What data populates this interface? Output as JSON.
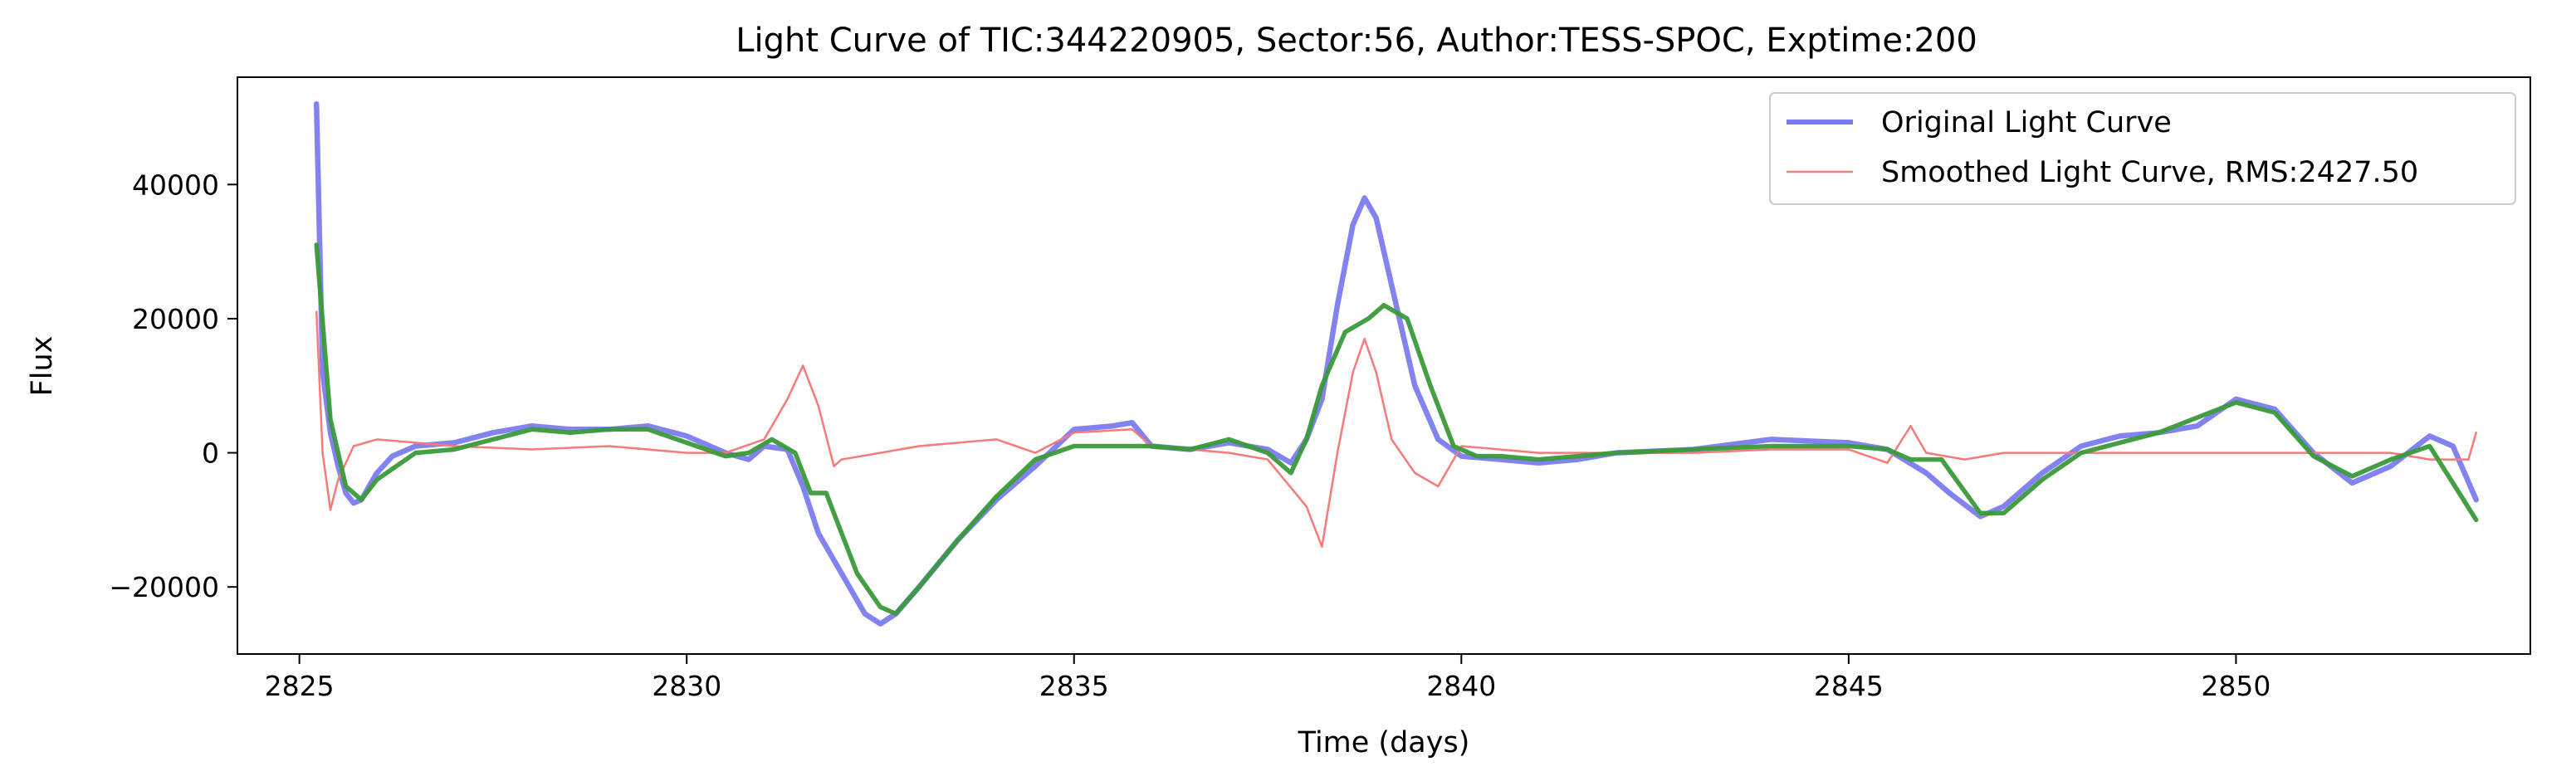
{
  "chart_data": {
    "type": "line",
    "title": "Light Curve of TIC:344220905, Sector:56, Author:TESS-SPOC, Exptime:200",
    "xlabel": "Time (days)",
    "ylabel": "Flux",
    "xlim": [
      2824.2,
      2853.8
    ],
    "ylim": [
      -30000,
      56000
    ],
    "xticks": [
      2825,
      2830,
      2835,
      2840,
      2845,
      2850
    ],
    "yticks": [
      -20000,
      0,
      20000,
      40000
    ],
    "xtick_labels": [
      "2825",
      "2830",
      "2835",
      "2840",
      "2845",
      "2850"
    ],
    "ytick_labels": [
      "−20000",
      "0",
      "20000",
      "40000"
    ],
    "grid": false,
    "legend_position": "top-right",
    "colors": {
      "original": "#7b7bf0",
      "smoothed": "#f87a7a",
      "trend": "#3a9a3a"
    },
    "legend": [
      {
        "label": "Original Light Curve",
        "color": "#7b7bf0"
      },
      {
        "label": "Smoothed Light Curve, RMS:2427.50",
        "color": "#f87a7a"
      }
    ],
    "series": [
      {
        "name": "Original Light Curve",
        "x": [
          2825.22,
          2825.3,
          2825.4,
          2825.5,
          2825.6,
          2825.7,
          2825.8,
          2825.9,
          2826.0,
          2826.2,
          2826.5,
          2827.0,
          2827.5,
          2828.0,
          2828.5,
          2829.0,
          2829.5,
          2830.0,
          2830.5,
          2830.8,
          2831.0,
          2831.3,
          2831.5,
          2831.7,
          2831.9,
          2832.1,
          2832.3,
          2832.5,
          2832.7,
          2833.0,
          2833.5,
          2834.0,
          2834.5,
          2835.0,
          2835.5,
          2835.75,
          2836.0,
          2836.5,
          2837.0,
          2837.5,
          2837.8,
          2838.0,
          2838.2,
          2838.4,
          2838.6,
          2838.75,
          2838.9,
          2839.1,
          2839.4,
          2839.7,
          2840.0,
          2840.5,
          2841.0,
          2841.5,
          2842.0,
          2843.0,
          2844.0,
          2845.0,
          2845.5,
          2846.0,
          2846.3,
          2846.7,
          2847.0,
          2847.5,
          2848.0,
          2848.5,
          2849.0,
          2849.5,
          2850.0,
          2850.5,
          2851.0,
          2851.5,
          2852.0,
          2852.5,
          2852.8,
          2853.1
        ],
        "y": [
          52000,
          12000,
          3000,
          -2000,
          -6000,
          -7500,
          -7000,
          -5000,
          -3000,
          -500,
          1000,
          1500,
          3000,
          4000,
          3500,
          3500,
          4000,
          2500,
          0,
          -1000,
          1000,
          500,
          -5000,
          -12000,
          -16000,
          -20000,
          -24000,
          -25500,
          -24000,
          -20000,
          -13000,
          -7000,
          -2000,
          3500,
          4000,
          4500,
          1000,
          500,
          1500,
          500,
          -1500,
          2000,
          8000,
          22000,
          34000,
          38000,
          35000,
          25000,
          10000,
          2000,
          -500,
          -1000,
          -1500,
          -1000,
          0,
          500,
          2000,
          1500,
          500,
          -3000,
          -6000,
          -9500,
          -8000,
          -3000,
          1000,
          2500,
          3000,
          4000,
          8000,
          6500,
          0,
          -4500,
          -2000,
          2500,
          1000,
          -7000
        ]
      },
      {
        "name": "Smoothed Light Curve, RMS:2427.50",
        "x": [
          2825.22,
          2825.3,
          2825.4,
          2825.5,
          2825.7,
          2826.0,
          2826.5,
          2827.0,
          2828.0,
          2829.0,
          2830.0,
          2830.5,
          2831.0,
          2831.3,
          2831.5,
          2831.7,
          2831.9,
          2832.0,
          2832.5,
          2833.0,
          2834.0,
          2834.5,
          2835.0,
          2835.75,
          2836.0,
          2837.0,
          2837.5,
          2838.0,
          2838.2,
          2838.4,
          2838.6,
          2838.75,
          2838.9,
          2839.1,
          2839.4,
          2839.7,
          2840.0,
          2841.0,
          2842.0,
          2843.0,
          2844.0,
          2845.0,
          2845.5,
          2845.8,
          2846.0,
          2846.5,
          2847.0,
          2848.0,
          2849.0,
          2850.0,
          2851.0,
          2852.0,
          2852.5,
          2853.0,
          2853.1
        ],
        "y": [
          21000,
          0,
          -8500,
          -4000,
          1000,
          2000,
          1500,
          1000,
          500,
          1000,
          0,
          0,
          2000,
          8000,
          13000,
          7000,
          -2000,
          -1000,
          0,
          1000,
          2000,
          0,
          3000,
          3500,
          1000,
          0,
          -1000,
          -8000,
          -14000,
          0,
          12000,
          17000,
          12000,
          2000,
          -3000,
          -5000,
          1000,
          0,
          0,
          0,
          500,
          500,
          -1500,
          4000,
          0,
          -1000,
          0,
          0,
          0,
          0,
          0,
          0,
          -1000,
          -1000,
          3000
        ]
      },
      {
        "name": "",
        "x": [
          2825.22,
          2825.4,
          2825.6,
          2825.8,
          2826.0,
          2826.5,
          2827.0,
          2827.5,
          2828.0,
          2828.5,
          2829.0,
          2829.5,
          2830.0,
          2830.5,
          2830.8,
          2831.1,
          2831.4,
          2831.6,
          2831.8,
          2832.0,
          2832.2,
          2832.5,
          2832.7,
          2833.0,
          2833.5,
          2834.0,
          2834.5,
          2835.0,
          2835.5,
          2836.0,
          2836.5,
          2837.0,
          2837.5,
          2837.8,
          2838.0,
          2838.2,
          2838.5,
          2838.8,
          2839.0,
          2839.3,
          2839.6,
          2839.9,
          2840.2,
          2840.5,
          2841.0,
          2842.0,
          2843.0,
          2844.0,
          2845.0,
          2845.5,
          2845.8,
          2846.2,
          2846.7,
          2847.0,
          2847.5,
          2848.0,
          2849.0,
          2850.0,
          2850.5,
          2851.0,
          2851.5,
          2852.0,
          2852.5,
          2853.1
        ],
        "y": [
          31000,
          5000,
          -5000,
          -7000,
          -4000,
          0,
          500,
          2000,
          3500,
          3000,
          3500,
          3500,
          1500,
          -500,
          0,
          2000,
          0,
          -6000,
          -6000,
          -12000,
          -18000,
          -23000,
          -24000,
          -20000,
          -13000,
          -6500,
          -1000,
          1000,
          1000,
          1000,
          500,
          2000,
          0,
          -3000,
          2000,
          10000,
          18000,
          20000,
          22000,
          20000,
          10000,
          1000,
          -500,
          -500,
          -1000,
          0,
          500,
          1000,
          1000,
          500,
          -1000,
          -1000,
          -9000,
          -9000,
          -4000,
          0,
          3000,
          7500,
          6000,
          -500,
          -3500,
          -1000,
          1000,
          -10000
        ]
      }
    ]
  }
}
